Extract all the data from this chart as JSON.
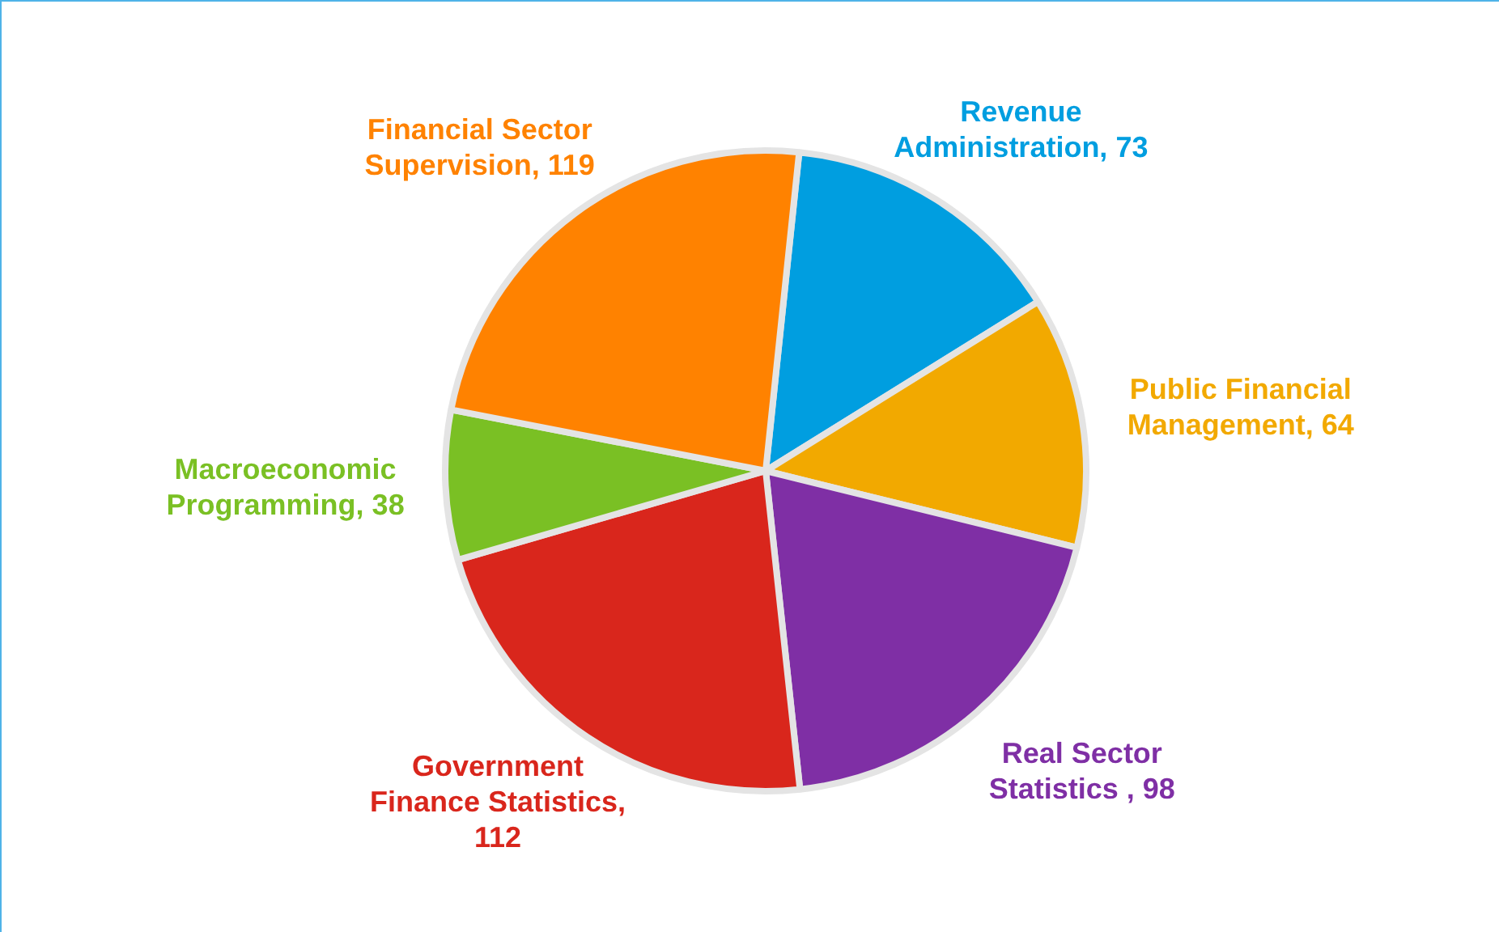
{
  "chart_data": {
    "type": "pie",
    "categories": [
      "Revenue Administration, 73",
      "Public Financial Management, 64",
      "Real Sector Statistics , 98",
      "Government Finance Statistics, 112",
      "Macroeconomic Programming, 38",
      "Financial Sector Supervision, 119"
    ],
    "values": [
      73,
      64,
      98,
      112,
      38,
      119
    ],
    "colors": [
      "#009ee0",
      "#f2a900",
      "#7f2fa5",
      "#d9261c",
      "#7ac024",
      "#ff8200"
    ],
    "legend": false
  }
}
